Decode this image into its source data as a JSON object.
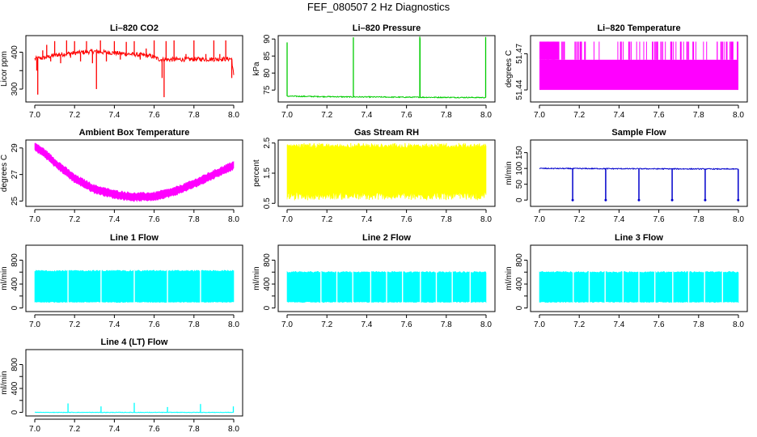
{
  "figure": {
    "title": "FEF_080507  2 Hz Diagnostics"
  },
  "chart_data": [
    {
      "id": "co2",
      "type": "line",
      "title": "Li–820 CO2",
      "ylabel": "Licor ppm",
      "color": "#ff0000",
      "xlim": [
        7.0,
        8.0
      ],
      "ylim": [
        265,
        445
      ],
      "yticks": [
        300,
        350,
        400
      ],
      "yticklabels": [
        "300",
        "",
        "400"
      ],
      "xticks": [
        7.0,
        7.2,
        7.4,
        7.6,
        7.8,
        8.0
      ],
      "xticklabels": [
        "7.0",
        "7.2",
        "7.4",
        "7.6",
        "7.8",
        "8.0"
      ],
      "baseline": [
        [
          7.0,
          382
        ],
        [
          7.05,
          385
        ],
        [
          7.1,
          392
        ],
        [
          7.2,
          398
        ],
        [
          7.3,
          402
        ],
        [
          7.4,
          398
        ],
        [
          7.5,
          394
        ],
        [
          7.58,
          390
        ],
        [
          7.63,
          380
        ],
        [
          7.7,
          380
        ],
        [
          7.8,
          381
        ],
        [
          7.9,
          381
        ],
        [
          7.99,
          382
        ],
        [
          8.0,
          335
        ]
      ],
      "noise": 6,
      "spikes": [
        [
          7.01,
          350
        ],
        [
          7.015,
          285
        ],
        [
          7.04,
          405
        ],
        [
          7.06,
          420
        ],
        [
          7.08,
          375
        ],
        [
          7.1,
          430
        ],
        [
          7.13,
          370
        ],
        [
          7.16,
          432
        ],
        [
          7.18,
          385
        ],
        [
          7.2,
          430
        ],
        [
          7.23,
          375
        ],
        [
          7.26,
          430
        ],
        [
          7.29,
          370
        ],
        [
          7.31,
          300
        ],
        [
          7.33,
          432
        ],
        [
          7.36,
          375
        ],
        [
          7.4,
          430
        ],
        [
          7.43,
          380
        ],
        [
          7.46,
          428
        ],
        [
          7.5,
          430
        ],
        [
          7.53,
          380
        ],
        [
          7.56,
          410
        ],
        [
          7.6,
          432
        ],
        [
          7.64,
          330
        ],
        [
          7.65,
          278
        ],
        [
          7.66,
          430
        ],
        [
          7.7,
          432
        ],
        [
          7.73,
          385
        ],
        [
          7.76,
          395
        ],
        [
          7.8,
          432
        ],
        [
          7.83,
          385
        ],
        [
          7.86,
          395
        ],
        [
          7.9,
          432
        ],
        [
          7.93,
          395
        ],
        [
          7.96,
          432
        ],
        [
          7.99,
          330
        ]
      ]
    },
    {
      "id": "pressure",
      "type": "line",
      "title": "Li–820 Pressure",
      "ylabel": "kPa",
      "color": "#00cc00",
      "xlim": [
        7.0,
        8.0
      ],
      "ylim": [
        71.5,
        91
      ],
      "yticks": [
        75,
        80,
        85,
        90
      ],
      "yticklabels": [
        "75",
        "80",
        "85",
        "90"
      ],
      "xticks": [
        7.0,
        7.2,
        7.4,
        7.6,
        7.8,
        8.0
      ],
      "xticklabels": [
        "7.0",
        "7.2",
        "7.4",
        "7.6",
        "7.8",
        "8.0"
      ],
      "baseline": [
        [
          7.0,
          73.2
        ],
        [
          7.3,
          73.0
        ],
        [
          7.6,
          72.9
        ],
        [
          8.0,
          72.8
        ]
      ],
      "noise": 0.15,
      "spikes": [
        [
          7.0,
          89
        ],
        [
          7.333,
          90.5
        ],
        [
          7.667,
          90.7
        ],
        [
          7.668,
          90.2
        ],
        [
          7.998,
          90.6
        ]
      ]
    },
    {
      "id": "licor-temp",
      "type": "area",
      "title": "Li–820 Temperature",
      "ylabel": "degrees C",
      "color": "#ff00ff",
      "xlim": [
        7.0,
        8.0
      ],
      "ylim": [
        51.43,
        51.485
      ],
      "yticks": [
        51.44,
        51.47
      ],
      "yticklabels": [
        "51.44",
        "51.47"
      ],
      "xticks": [
        7.0,
        7.2,
        7.4,
        7.6,
        7.8,
        8.0
      ],
      "xticklabels": [
        "7.0",
        "7.2",
        "7.4",
        "7.6",
        "7.8",
        "8.0"
      ],
      "lower": 51.44,
      "mid": 51.465,
      "upper": 51.48
    },
    {
      "id": "ambient-temp",
      "type": "band",
      "title": "Ambient Box Temperature",
      "ylabel": "degrees C",
      "color": "#ff00ff",
      "xlim": [
        7.0,
        8.0
      ],
      "ylim": [
        24.6,
        29.6
      ],
      "yticks": [
        25,
        27,
        29
      ],
      "yticklabels": [
        "25",
        "27",
        "29"
      ],
      "xticks": [
        7.0,
        7.2,
        7.4,
        7.6,
        7.8,
        8.0
      ],
      "xticklabels": [
        "7.0",
        "7.2",
        "7.4",
        "7.6",
        "7.8",
        "8.0"
      ],
      "center": [
        [
          7.0,
          29.1
        ],
        [
          7.05,
          28.6
        ],
        [
          7.1,
          27.9
        ],
        [
          7.2,
          26.7
        ],
        [
          7.3,
          25.9
        ],
        [
          7.4,
          25.5
        ],
        [
          7.5,
          25.3
        ],
        [
          7.6,
          25.35
        ],
        [
          7.7,
          25.7
        ],
        [
          7.8,
          26.3
        ],
        [
          7.9,
          27.0
        ],
        [
          8.0,
          27.7
        ]
      ],
      "width": 0.55
    },
    {
      "id": "rh",
      "type": "band",
      "title": "Gas Stream RH",
      "ylabel": "percent",
      "color": "#ffff00",
      "xlim": [
        7.0,
        8.0
      ],
      "ylim": [
        0.4,
        2.6
      ],
      "yticks": [
        0.5,
        1.5,
        2.5
      ],
      "yticklabels": [
        "0.5",
        "1.5",
        "2.5"
      ],
      "xticks": [
        7.0,
        7.2,
        7.4,
        7.6,
        7.8,
        8.0
      ],
      "xticklabels": [
        "7.0",
        "7.2",
        "7.4",
        "7.6",
        "7.8",
        "8.0"
      ],
      "center": [
        [
          7.0,
          1.6
        ],
        [
          8.0,
          1.6
        ]
      ],
      "top": 2.4,
      "bottom": 0.75,
      "jitter": true
    },
    {
      "id": "sample-flow",
      "type": "line",
      "title": "Sample Flow",
      "ylabel": "ml/min",
      "color": "#0000cc",
      "xlim": [
        7.0,
        8.0
      ],
      "ylim": [
        -20,
        190
      ],
      "yticks": [
        0,
        50,
        100,
        150
      ],
      "yticklabels": [
        "0",
        "50",
        "100",
        "150"
      ],
      "xticks": [
        7.0,
        7.2,
        7.4,
        7.6,
        7.8,
        8.0
      ],
      "xticklabels": [
        "7.0",
        "7.2",
        "7.4",
        "7.6",
        "7.8",
        "8.0"
      ],
      "baseline": [
        [
          7.0,
          100
        ],
        [
          8.0,
          98
        ]
      ],
      "noise": 1.5,
      "dips": [
        7.167,
        7.333,
        7.5,
        7.667,
        7.833,
        7.999
      ]
    },
    {
      "id": "line1-flow",
      "type": "band",
      "title": "Line 1 Flow",
      "ylabel": "ml/min",
      "color": "#00ffff",
      "xlim": [
        7.0,
        8.0
      ],
      "ylim": [
        -60,
        1050
      ],
      "yticks": [
        0,
        200,
        400,
        600,
        800
      ],
      "yticklabels": [
        "0",
        "",
        "400",
        "",
        "800"
      ],
      "xticks": [
        7.0,
        7.2,
        7.4,
        7.6,
        7.8,
        8.0
      ],
      "xticklabels": [
        "7.0",
        "7.2",
        "7.4",
        "7.6",
        "7.8",
        "8.0"
      ],
      "top": 620,
      "bottom": 100,
      "gaps": [
        7.167,
        7.333,
        7.5,
        7.667,
        7.833
      ]
    },
    {
      "id": "line2-flow",
      "type": "band",
      "title": "Line 2 Flow",
      "ylabel": "ml/min",
      "color": "#00ffff",
      "xlim": [
        7.0,
        8.0
      ],
      "ylim": [
        -60,
        1050
      ],
      "yticks": [
        0,
        200,
        400,
        600,
        800
      ],
      "yticklabels": [
        "0",
        "",
        "400",
        "",
        "800"
      ],
      "xticks": [
        7.0,
        7.2,
        7.4,
        7.6,
        7.8,
        8.0
      ],
      "xticklabels": [
        "7.0",
        "7.2",
        "7.4",
        "7.6",
        "7.8",
        "8.0"
      ],
      "top": 600,
      "bottom": 100,
      "gaps": [
        7.17,
        7.25,
        7.33,
        7.42,
        7.5,
        7.58,
        7.67,
        7.75,
        7.83,
        7.92
      ]
    },
    {
      "id": "line3-flow",
      "type": "band",
      "title": "Line 3 Flow",
      "ylabel": "ml/min",
      "color": "#00ffff",
      "xlim": [
        7.0,
        8.0
      ],
      "ylim": [
        -60,
        1050
      ],
      "yticks": [
        0,
        200,
        400,
        600,
        800
      ],
      "yticklabels": [
        "0",
        "",
        "400",
        "",
        "800"
      ],
      "xticks": [
        7.0,
        7.2,
        7.4,
        7.6,
        7.8,
        8.0
      ],
      "xticklabels": [
        "7.0",
        "7.2",
        "7.4",
        "7.6",
        "7.8",
        "8.0"
      ],
      "top": 600,
      "bottom": 100,
      "gaps": [
        7.17,
        7.25,
        7.33,
        7.42,
        7.5,
        7.58,
        7.67,
        7.75,
        7.83,
        7.92
      ]
    },
    {
      "id": "line4-flow",
      "type": "line",
      "title": "Line 4 (LT) Flow",
      "ylabel": "ml/min",
      "color": "#00ffff",
      "xlim": [
        7.0,
        8.0
      ],
      "ylim": [
        -60,
        1050
      ],
      "yticks": [
        0,
        200,
        400,
        600,
        800
      ],
      "yticklabels": [
        "0",
        "",
        "400",
        "",
        "800"
      ],
      "xticks": [
        7.0,
        7.2,
        7.4,
        7.6,
        7.8,
        8.0
      ],
      "xticklabels": [
        "7.0",
        "7.2",
        "7.4",
        "7.6",
        "7.8",
        "8.0"
      ],
      "baseline": [
        [
          7.0,
          0
        ],
        [
          8.0,
          0
        ]
      ],
      "noise": 4,
      "spikes": [
        [
          7.167,
          150
        ],
        [
          7.333,
          100
        ],
        [
          7.5,
          160
        ],
        [
          7.667,
          90
        ],
        [
          7.833,
          140
        ],
        [
          7.998,
          100
        ]
      ]
    }
  ]
}
